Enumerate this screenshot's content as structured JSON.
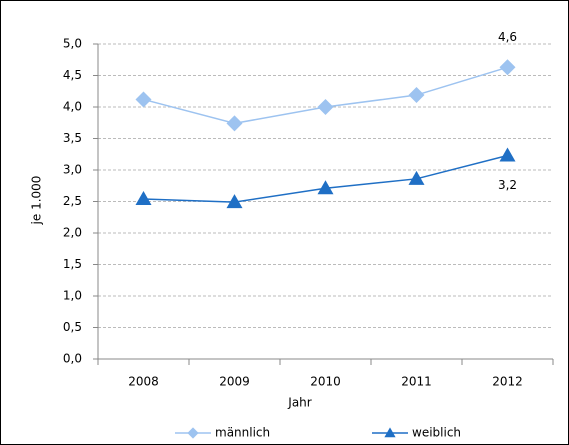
{
  "chart_data": {
    "type": "line",
    "categories": [
      "2008",
      "2009",
      "2010",
      "2011",
      "2012"
    ],
    "series": [
      {
        "name": "männlich",
        "color": "#9dc3f0",
        "marker": "diamond",
        "values": [
          4.12,
          3.74,
          4.0,
          4.19,
          4.63
        ],
        "value_labels": [
          null,
          null,
          null,
          null,
          "4,6"
        ]
      },
      {
        "name": "weiblich",
        "color": "#1f6fc5",
        "marker": "triangle",
        "values": [
          2.54,
          2.49,
          2.71,
          2.86,
          3.23
        ],
        "value_labels": [
          null,
          null,
          null,
          null,
          "3,2"
        ]
      }
    ],
    "xlabel": "Jahr",
    "ylabel": "je 1.000",
    "ylim": [
      0,
      5
    ],
    "yticks": [
      {
        "value": 0,
        "label": "0,0"
      },
      {
        "value": 0.5,
        "label": "0,5"
      },
      {
        "value": 1,
        "label": "1,0"
      },
      {
        "value": 1.5,
        "label": "1,5"
      },
      {
        "value": 2,
        "label": "2,0"
      },
      {
        "value": 2.5,
        "label": "2,5"
      },
      {
        "value": 3,
        "label": "3,0"
      },
      {
        "value": 3.5,
        "label": "3,5"
      },
      {
        "value": 4,
        "label": "4,0"
      },
      {
        "value": 4.5,
        "label": "4,5"
      },
      {
        "value": 5,
        "label": "5,0"
      }
    ],
    "grid": true
  }
}
